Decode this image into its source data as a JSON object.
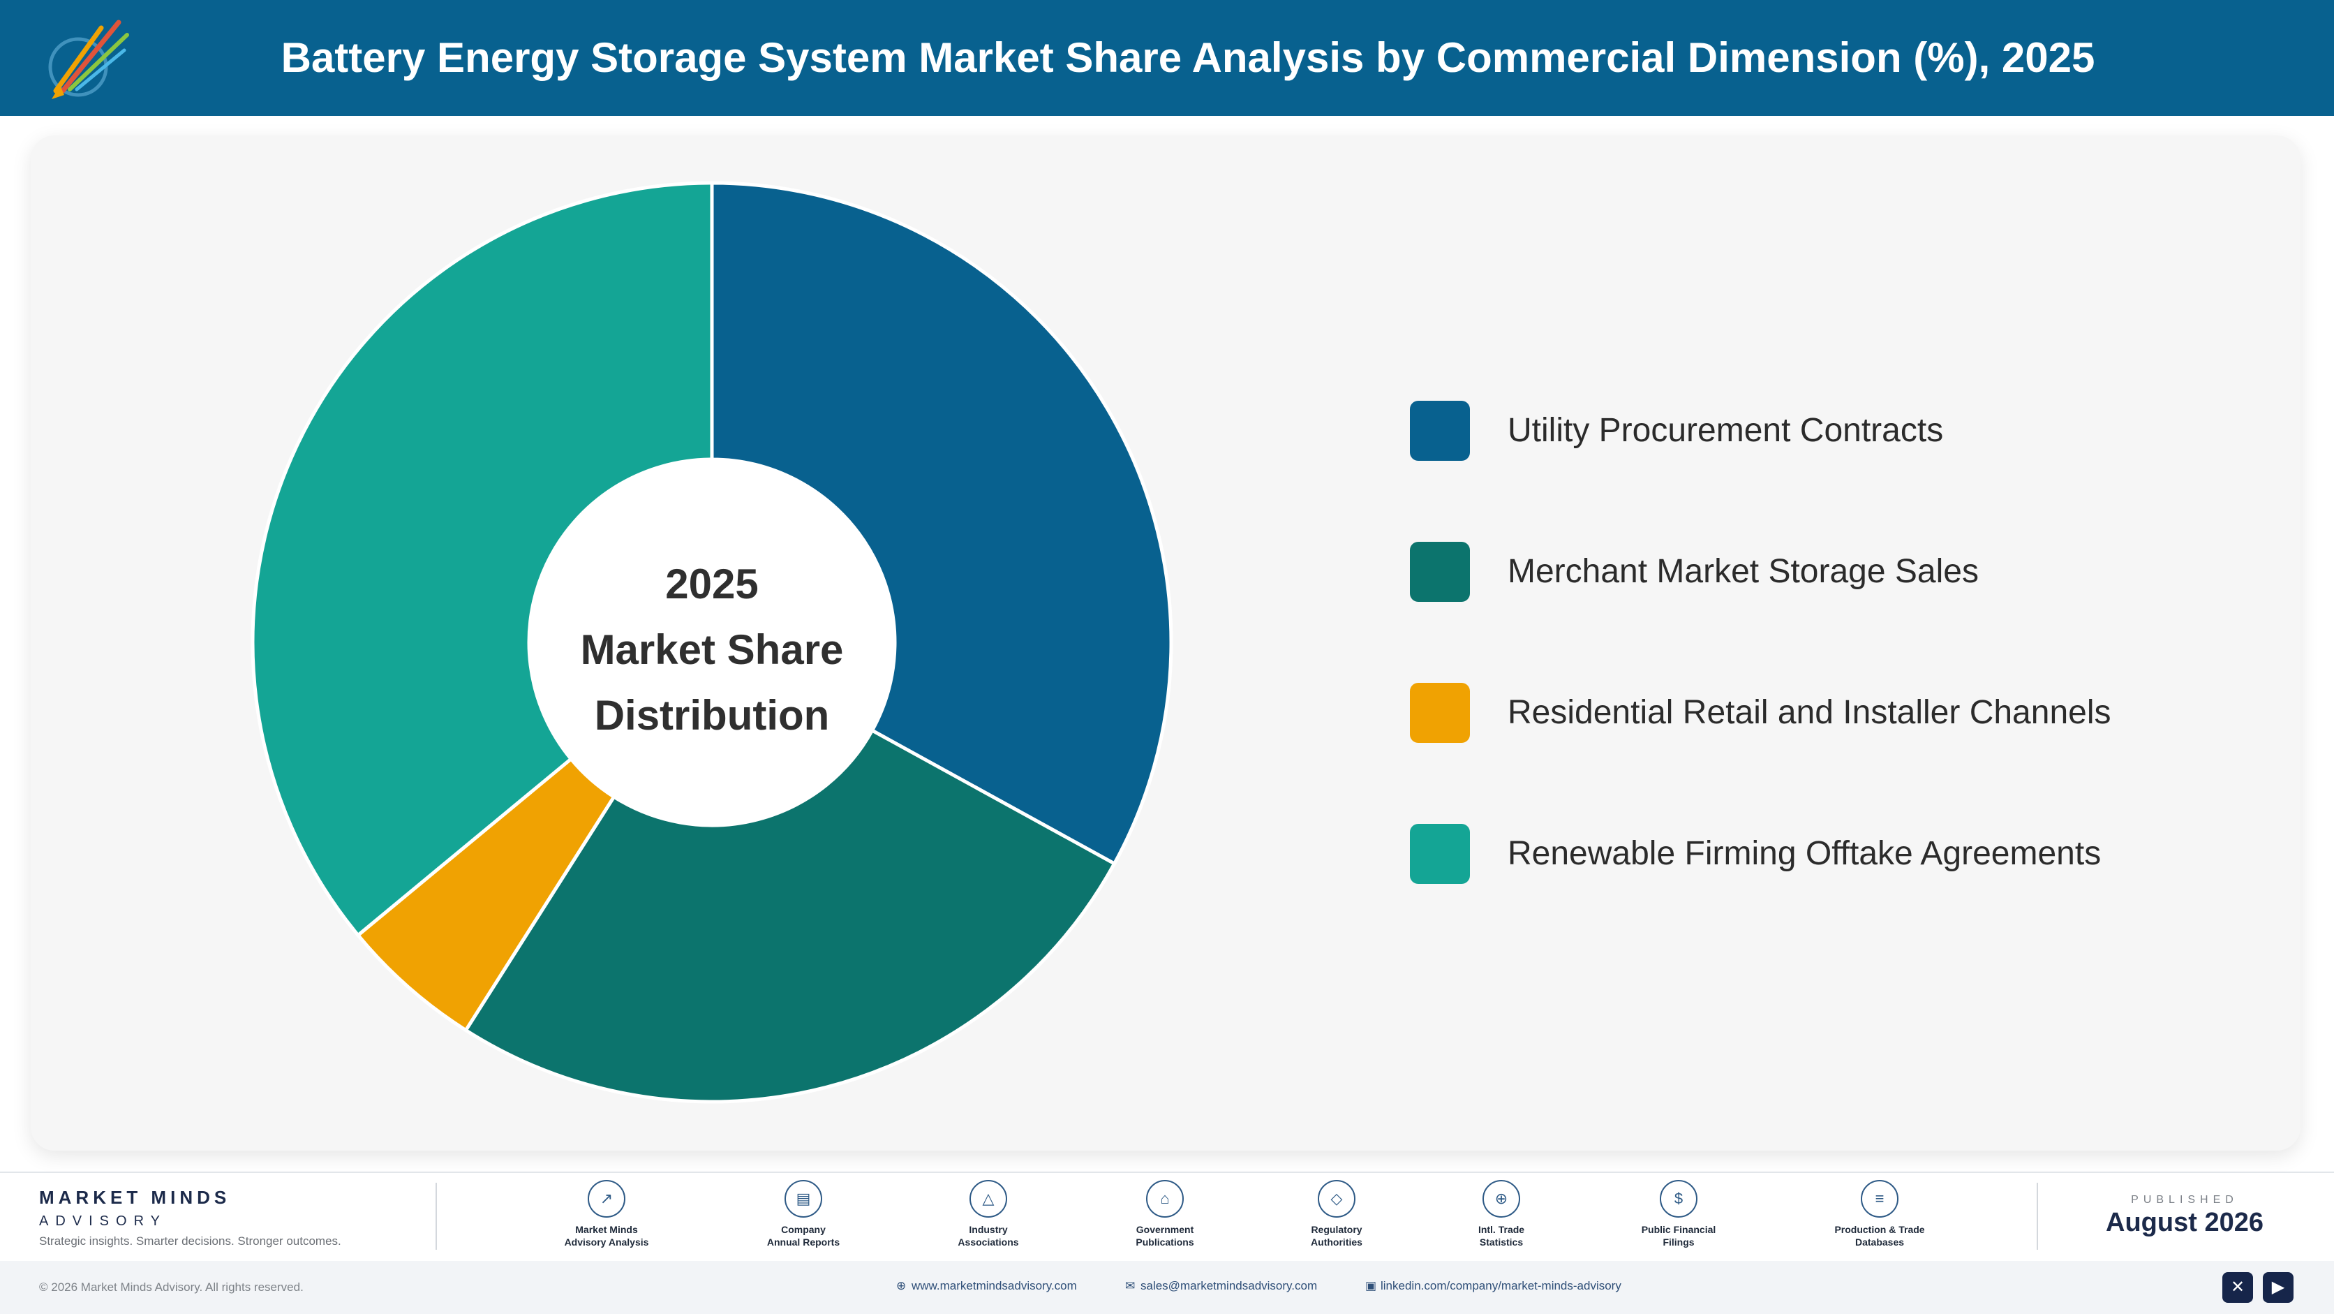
{
  "header": {
    "title": "Battery Energy Storage System Market Share Analysis by Commercial Dimension (%), 2025",
    "logo_text": "Market Minds Advisory"
  },
  "chart_data": {
    "type": "pie",
    "variant": "donut",
    "categories": [
      "Utility Procurement Contracts",
      "Merchant Market Storage Sales",
      "Residential Retail and Installer Channels",
      "Renewable Firming Offtake Agreements"
    ],
    "values": [
      33.0,
      26.0,
      5.0,
      36.0
    ],
    "unit": "%",
    "colors": [
      "#08618f",
      "#0c746d",
      "#f0a202",
      "#14a595"
    ],
    "start_angle_deg": 0,
    "direction": "clockwise",
    "center_label": [
      "2025",
      "Market Share",
      "Distribution"
    ],
    "legend_position": "right"
  },
  "footer": {
    "brand_name": "MARKET MINDS",
    "brand_sub": "ADVISORY",
    "tagline": "Strategic insights. Smarter decisions. Stronger outcomes.",
    "sources": [
      {
        "line1": "Market Minds",
        "line2": "Advisory Analysis",
        "icon": "trend-chart-icon"
      },
      {
        "line1": "Company",
        "line2": "Annual Reports",
        "icon": "document-icon"
      },
      {
        "line1": "Industry",
        "line2": "Associations",
        "icon": "network-icon"
      },
      {
        "line1": "Government",
        "line2": "Publications",
        "icon": "government-building-icon"
      },
      {
        "line1": "Regulatory",
        "line2": "Authorities",
        "icon": "shield-icon"
      },
      {
        "line1": "Intl. Trade",
        "line2": "Statistics",
        "icon": "globe-icon"
      },
      {
        "line1": "Public Financial",
        "line2": "Filings",
        "icon": "dollar-coin-icon"
      },
      {
        "line1": "Production & Trade",
        "line2": "Databases",
        "icon": "database-icon"
      }
    ],
    "published_label": "PUBLISHED",
    "published_date": "August 2026",
    "copyright": "© 2026 Market Minds Advisory. All rights reserved.",
    "website": "www.marketmindsadvisory.com",
    "email": "sales@marketmindsadvisory.com",
    "linkedin": "linkedin.com/company/market-minds-advisory"
  }
}
